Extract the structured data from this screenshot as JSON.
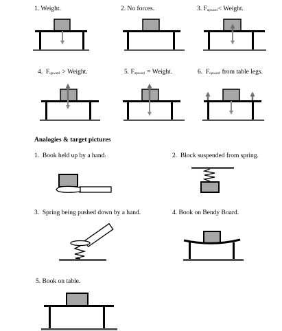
{
  "top_row": [
    {
      "num": "1.",
      "text": "Weight."
    },
    {
      "num": "2.",
      "text": "No forces."
    },
    {
      "num": "3.",
      "f": "F",
      "sub": "upward",
      "rest": "< Weight."
    }
  ],
  "mid_row": [
    {
      "num": "4.",
      "f": "F",
      "sub": "upward",
      "rest": "> Weight."
    },
    {
      "num": "5.",
      "f": "F",
      "sub": "upward",
      "rest": "= Weight."
    },
    {
      "num": "6.",
      "f": "F",
      "sub": "upward",
      "rest": "from table legs."
    }
  ],
  "heading": "Analogies & target pictures",
  "analogies": [
    {
      "num": "1.",
      "text": "Book held up by a hand."
    },
    {
      "num": "2.",
      "text": "Block suspended from spring."
    },
    {
      "num": "3.",
      "text": "Spring being pushed down by a hand."
    },
    {
      "num": "4.",
      "text": "Book on Bendy Board."
    },
    {
      "num": "5.",
      "text": "Book on table."
    }
  ],
  "colors": {
    "block": "#a6a6a6",
    "arrow": "#8c8c8c",
    "line": "#000000",
    "floor": "#555555"
  }
}
